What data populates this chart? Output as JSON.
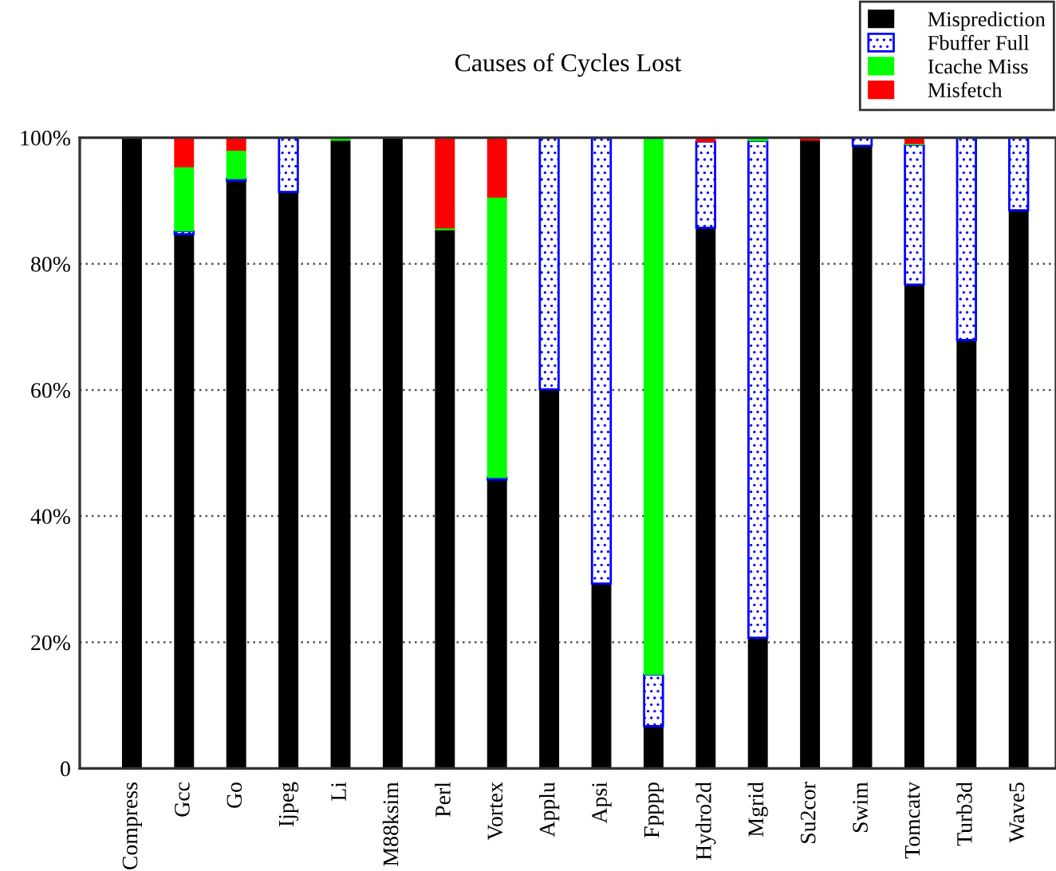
{
  "chart_data": {
    "type": "bar",
    "title": "Causes of Cycles Lost",
    "stacked": true,
    "grid": "y",
    "legend": "top right",
    "categories": [
      "Compress",
      "Gcc",
      "Go",
      "Ijpeg",
      "Li",
      "M88ksim",
      "Perl",
      "Vortex",
      "Applu",
      "Apsi",
      "Fpppp",
      "Hydro2d",
      "Mgrid",
      "Su2cor",
      "Swim",
      "Tomcatv",
      "Turb3d",
      "Wave5"
    ],
    "series": [
      {
        "name": "Misprediction",
        "color": "#000000",
        "values": [
          100,
          84.7,
          93.2,
          91.4,
          99.6,
          100,
          85.4,
          45.8,
          60.1,
          29.3,
          6.7,
          85.7,
          20.7,
          99.6,
          98.7,
          76.7,
          67.9,
          88.5
        ]
      },
      {
        "name": "Fbuffer Full",
        "color": "#0000ff",
        "values": [
          null,
          0.5,
          0.3,
          8.6,
          null,
          null,
          null,
          0.3,
          39.9,
          70.7,
          8.2,
          13.7,
          78.8,
          null,
          1.3,
          22.2,
          32.1,
          11.5
        ]
      },
      {
        "name": "Icache Miss",
        "color": "#00ff00",
        "values": [
          null,
          10.2,
          4.5,
          null,
          0.4,
          null,
          0.3,
          44.5,
          null,
          null,
          85.1,
          null,
          0.5,
          null,
          null,
          0.2,
          null,
          null
        ]
      },
      {
        "name": "Misfetch",
        "color": "#ff0000",
        "values": [
          null,
          4.6,
          2.0,
          null,
          null,
          null,
          14.3,
          9.4,
          null,
          null,
          null,
          0.6,
          null,
          0.4,
          null,
          0.9,
          null,
          null
        ]
      }
    ],
    "ylim": [
      0,
      100
    ],
    "yticks": [
      {
        "value": 0,
        "label": "0"
      },
      {
        "value": 20,
        "label": "20%"
      },
      {
        "value": 40,
        "label": "40%"
      },
      {
        "value": 60,
        "label": "60%"
      },
      {
        "value": 80,
        "label": "80%"
      },
      {
        "value": 100,
        "label": "100%"
      }
    ]
  }
}
